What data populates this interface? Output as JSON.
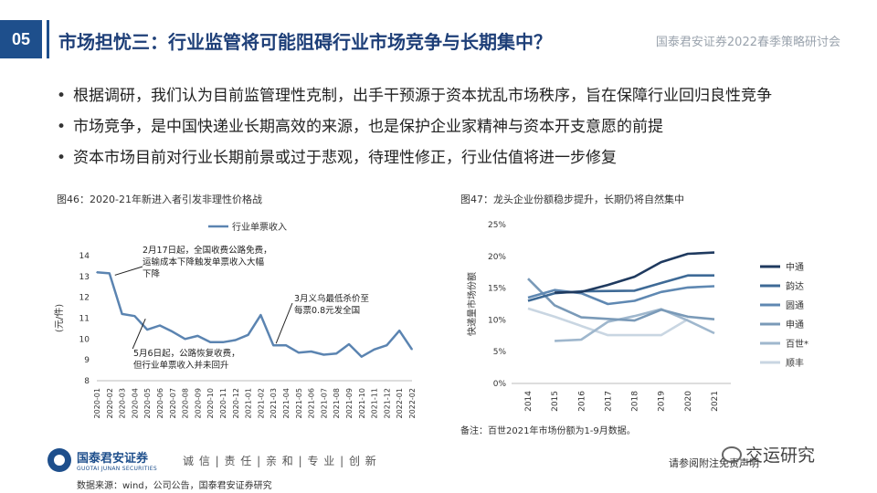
{
  "header": {
    "page_number": "05",
    "title": "市场担忧三：行业监管将可能阻碍行业市场竞争与长期集中？",
    "brand_tag": "国泰君安证券2022春季策略研讨会"
  },
  "bullets": [
    "根据调研，我们认为目前监管理性克制，出手干预源于资本扰乱市场秩序，旨在保障行业回归良性竞争",
    "市场竞争，是中国快递业长期高效的来源，也是保护企业家精神与资本开支意愿的前提",
    "资本市场目前对行业长期前景或过于悲观，待理性修正，行业估值将进一步修复"
  ],
  "chart_data": [
    {
      "type": "line",
      "title": "图46：2020-21年新进入者引发非理性价格战",
      "ylabel": "(元/件)",
      "xlabel": "",
      "ylim": [
        8,
        14
      ],
      "yticks": [
        8,
        9,
        10,
        11,
        12,
        13,
        14
      ],
      "legend": "top",
      "categories": [
        "2020-01",
        "2020-02",
        "2020-03",
        "2020-04",
        "2020-05",
        "2020-06",
        "2020-07",
        "2020-08",
        "2020-09",
        "2020-10",
        "2020-11",
        "2020-12",
        "2021-01",
        "2021-02",
        "2021-03",
        "2021-04",
        "2021-05",
        "2021-06",
        "2021-07",
        "2021-08",
        "2021-09",
        "2021-10",
        "2021-11",
        "2021-12",
        "2022-01",
        "2022-02"
      ],
      "series": [
        {
          "name": "行业单票收入",
          "color": "#5b84b1",
          "values": [
            13.2,
            13.15,
            11.2,
            11.1,
            10.45,
            10.65,
            10.35,
            10.0,
            10.15,
            9.85,
            9.85,
            9.95,
            10.2,
            11.15,
            9.7,
            9.7,
            9.35,
            9.4,
            9.25,
            9.3,
            9.75,
            9.15,
            9.5,
            9.7,
            10.4,
            9.5
          ]
        }
      ],
      "annotations": [
        {
          "text": "2月17日起，全国收费公路免费，运输成本下降触发单票收入大幅下降",
          "lines": [
            "2月17日起，全国收费公路免费，",
            "运输成本下降触发单票收入大幅",
            "下降"
          ],
          "anchor": "2020-02"
        },
        {
          "text": "5月6日起，公路恢复收费，但行业单票收入并未回升",
          "lines": [
            "5月6日起，公路恢复收费，",
            "但行业单票收入并未回升"
          ],
          "anchor": "2020-05"
        },
        {
          "text": "3月义乌最低杀价至每票0.8元发全国",
          "lines": [
            "3月义乌最低杀价至",
            "每票0.8元发全国"
          ],
          "anchor": "2021-03"
        }
      ]
    },
    {
      "type": "line",
      "title": "图47：龙头企业份额稳步提升，长期仍将自然集中",
      "ylabel": "快递量市场份额",
      "xlabel": "",
      "ylim": [
        0,
        25
      ],
      "yticks": [
        "0%",
        "5%",
        "10%",
        "15%",
        "20%",
        "25%"
      ],
      "legend": "right",
      "categories": [
        "2014",
        "2015",
        "2016",
        "2017",
        "2018",
        "2019",
        "2020",
        "2021"
      ],
      "series": [
        {
          "name": "中通",
          "color": "#1f3a5f",
          "values": [
            null,
            14.3,
            14.4,
            15.5,
            16.8,
            19.1,
            20.4,
            20.6
          ]
        },
        {
          "name": "韵达",
          "color": "#3e6a96",
          "values": [
            13.0,
            14.2,
            14.5,
            null,
            14.6,
            15.8,
            17.0,
            17.0
          ]
        },
        {
          "name": "圆通",
          "color": "#5f88b2",
          "values": [
            13.5,
            14.7,
            14.2,
            12.5,
            13.0,
            14.4,
            15.1,
            15.3
          ]
        },
        {
          "name": "申通",
          "color": "#7a9ab8",
          "values": [
            16.5,
            12.3,
            10.4,
            null,
            9.9,
            11.6,
            10.5,
            10.1
          ]
        },
        {
          "name": "百世*",
          "color": "#9fb7cd",
          "values": [
            null,
            6.7,
            6.9,
            9.7,
            10.6,
            11.7,
            9.9,
            7.9
          ]
        },
        {
          "name": "顺丰",
          "color": "#c9d6e2",
          "values": [
            11.8,
            10.5,
            null,
            7.6,
            7.6,
            7.6,
            10.1,
            null
          ]
        }
      ]
    }
  ],
  "note": "备注：百世2021年市场份额为1-9月数据。",
  "footer": {
    "logo_cn": "国泰君安证券",
    "logo_en": "GUOTAI JUNAN SECURITIES",
    "slogan": "诚 信 | 责 任 | 亲 和 | 专 业 | 创 新",
    "disclaimer": "请参阅附注免责声明",
    "watermark": "交运研究",
    "source": "数据来源：wind，公司公告，国泰君安证券研究"
  }
}
